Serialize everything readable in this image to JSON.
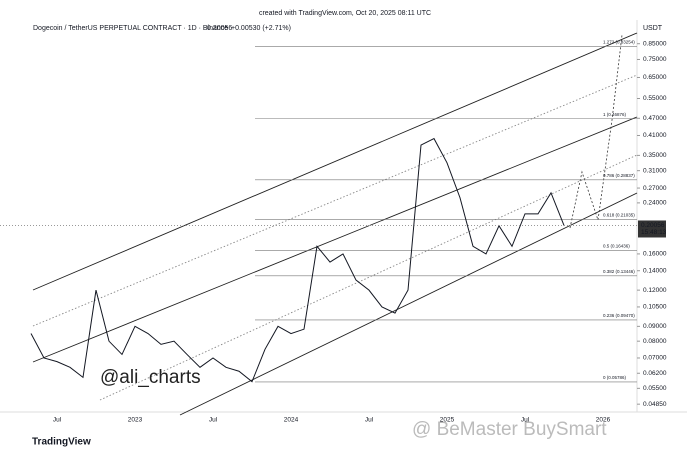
{
  "header": {
    "created": "created with TradingView.com, Oct 20, 2025 08:11 UTC",
    "symbol": "Dogecoin / TetherUS PERPETUAL CONTRACT · 1D · Binance",
    "last": "0.20056",
    "change": "+0.00530 (+2.71%)",
    "currency": "USDT"
  },
  "chart_data": {
    "type": "line",
    "log_scale": true,
    "color": "#131722",
    "categories": [
      null,
      null,
      "Jul",
      null,
      null,
      null,
      null,
      null,
      "2023",
      null,
      null,
      null,
      null,
      null,
      "Jul",
      null,
      null,
      null,
      null,
      null,
      "2024",
      null,
      null,
      null,
      null,
      null,
      "Jul",
      null,
      null,
      null,
      null,
      null,
      "2025",
      null,
      null,
      null,
      null,
      null,
      "Jul",
      null,
      null,
      null,
      null,
      null,
      "2026"
    ],
    "series": [
      {
        "name": "DOGEUSDT",
        "color": "#131722",
        "values": [
          0.085,
          0.07,
          0.068,
          0.065,
          0.06,
          0.12,
          0.08,
          0.072,
          0.09,
          0.085,
          0.078,
          0.08,
          0.072,
          0.065,
          0.07,
          0.065,
          0.063,
          0.058,
          0.075,
          0.09,
          0.085,
          0.088,
          0.17,
          0.15,
          0.16,
          0.13,
          0.12,
          0.105,
          0.1,
          0.12,
          0.38,
          0.4,
          0.33,
          0.25,
          0.17,
          0.16,
          0.2,
          0.17,
          0.22,
          0.22,
          0.26,
          0.20056,
          null,
          null,
          null
        ]
      }
    ],
    "ylim": [
      0.0445,
      1.01
    ],
    "yticks": [
      {
        "value": 0.85,
        "label": "0.85000"
      },
      {
        "value": 0.75,
        "label": "0.75000"
      },
      {
        "value": 0.65,
        "label": "0.65000"
      },
      {
        "value": 0.55,
        "label": "0.55000"
      },
      {
        "value": 0.47,
        "label": "0.47000"
      },
      {
        "value": 0.41,
        "label": "0.41000"
      },
      {
        "value": 0.35,
        "label": "0.35000"
      },
      {
        "value": 0.31,
        "label": "0.31000"
      },
      {
        "value": 0.27,
        "label": "0.27000"
      },
      {
        "value": 0.24,
        "label": "0.24000"
      },
      {
        "value": 0.16,
        "label": "0.16000"
      },
      {
        "value": 0.14,
        "label": "0.14000"
      },
      {
        "value": 0.12,
        "label": "0.12000"
      },
      {
        "value": 0.105,
        "label": "0.10500"
      },
      {
        "value": 0.09,
        "label": "0.09000"
      },
      {
        "value": 0.08,
        "label": "0.08000"
      },
      {
        "value": 0.07,
        "label": "0.07000"
      },
      {
        "value": 0.062,
        "label": "0.06200"
      },
      {
        "value": 0.055,
        "label": "0.05500"
      },
      {
        "value": 0.0485,
        "label": "0.04850"
      }
    ],
    "last_price": {
      "value": 0.20056,
      "label": "0.20056",
      "countdown": "15:48:13"
    },
    "fib_levels": [
      {
        "value": 0.83254,
        "label": "1.272 (0.83254)"
      },
      {
        "value": 0.46876,
        "label": "1 (0.46876)"
      },
      {
        "value": 0.28837,
        "label": "0.786 (0.28837)"
      },
      {
        "value": 0.21035,
        "label": "0.618 (0.21035)"
      },
      {
        "value": 0.16436,
        "label": "0.5 (0.16436)"
      },
      {
        "value": 0.13446,
        "label": "0.382 (0.13446)"
      },
      {
        "value": 0.0947,
        "label": "0.236 (0.09470)"
      },
      {
        "value": 0.05786,
        "label": "0 (0.05786)"
      }
    ]
  },
  "watermarks": {
    "author": "@ali_charts",
    "brand": "TradingView",
    "source": "@ BeMaster BuySmart"
  }
}
